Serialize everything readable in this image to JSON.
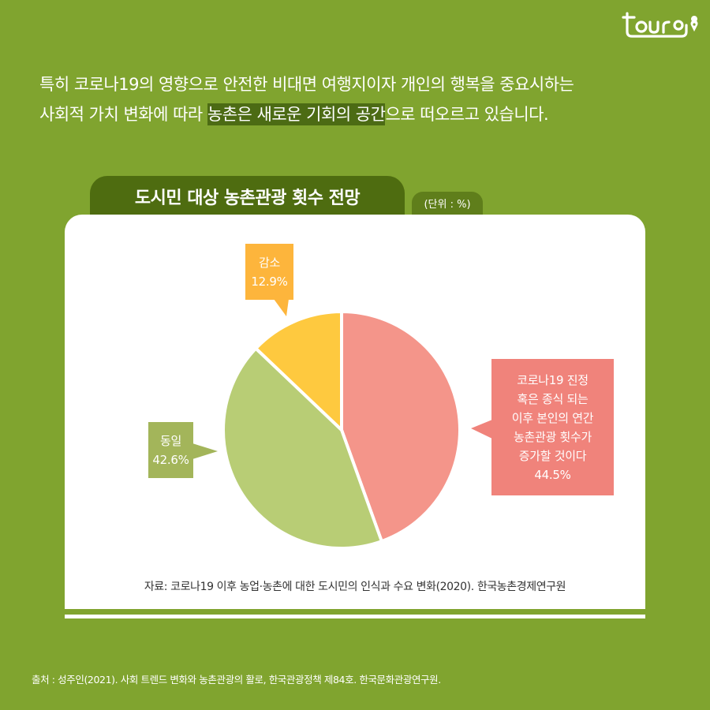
{
  "logo": {
    "text": "tourg",
    "icon": "location-pin-icon"
  },
  "intro": {
    "line1": "특히 코로나19의 영향으로 안전한 비대면 여행지이자 개인의 행복을 중요시하는",
    "line2_pre": "사회적 가치 변화에 따라 ",
    "line2_highlight": "농촌은 새로운 기회의 공간",
    "line2_post": "으로 떠오르고 있습니다."
  },
  "chart_header": {
    "title": "도시민 대상 농촌관광 횟수 전망",
    "unit": "(단위 : %)"
  },
  "callouts": {
    "decrease": {
      "label": "감소",
      "value": "12.9%"
    },
    "same": {
      "label": "동일",
      "value": "42.6%"
    },
    "increase": {
      "lines": [
        "코로나19 진정",
        "혹은 종식 되는",
        "이후 본인의 연간",
        "농촌관광 횟수가",
        "증가할 것이다"
      ],
      "value": "44.5%"
    }
  },
  "source_note": "자료: 코로나19 이후 농업·농촌에 대한 도시민의 인식과 수요 변화(2020). 한국농촌경제연구원",
  "footer": "출처 : 성주인(2021). 사회 트렌드 변화와 농촌관광의 활로, 한국관광정책 제84호. 한국문화관광연구원.",
  "colors": {
    "background": "#80a42f",
    "title_bar": "#4e6c10",
    "highlight": "#4c6b14",
    "pie_increase": "#f4958a",
    "pie_same": "#b8cd75",
    "pie_decrease": "#fec93f",
    "callout_increase": "#f0837b",
    "callout_same": "#a3b55a",
    "callout_decrease": "#fdb53c"
  },
  "chart_data": {
    "type": "pie",
    "title": "도시민 대상 농촌관광 횟수 전망",
    "unit": "%",
    "categories": [
      "코로나19 진정 혹은 종식 되는 이후 본인의 연간 농촌관광 횟수가 증가할 것이다",
      "동일",
      "감소"
    ],
    "values": [
      44.5,
      42.6,
      12.9
    ],
    "colors": [
      "#f4958a",
      "#b8cd75",
      "#fec93f"
    ],
    "start_angle": "12 o'clock, clockwise",
    "source": "자료: 코로나19 이후 농업·농촌에 대한 도시민의 인식과 수요 변화(2020). 한국농촌경제연구원"
  }
}
